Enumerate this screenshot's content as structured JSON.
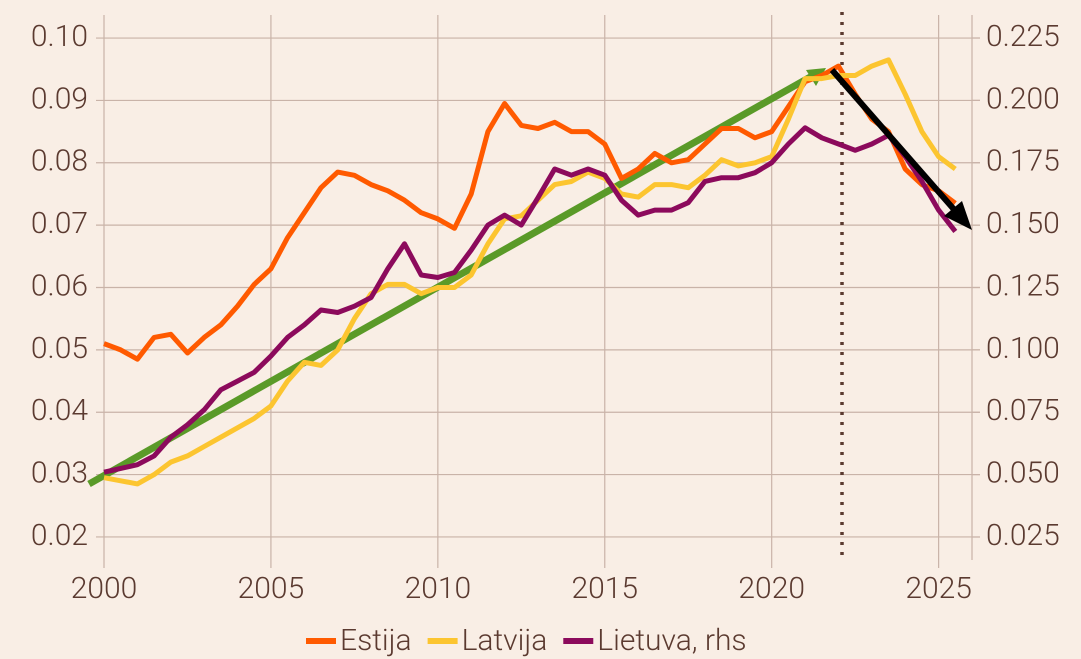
{
  "chart_data": {
    "type": "line",
    "x": [
      2000,
      2000.5,
      2001,
      2001.5,
      2002,
      2002.5,
      2003,
      2003.5,
      2004,
      2004.5,
      2005,
      2005.5,
      2006,
      2006.5,
      2007,
      2007.5,
      2008,
      2008.5,
      2009,
      2009.5,
      2010,
      2010.5,
      2011,
      2011.5,
      2012,
      2012.5,
      2013,
      2013.5,
      2014,
      2014.5,
      2015,
      2015.5,
      2016,
      2016.5,
      2017,
      2017.5,
      2018,
      2018.5,
      2019,
      2019.5,
      2020,
      2020.5,
      2021,
      2021.5,
      2022,
      2022.5,
      2023,
      2023.5,
      2024,
      2024.5,
      2025,
      2025.5
    ],
    "series": [
      {
        "name": "Estija",
        "color": "#ff5a00",
        "values": [
          0.051,
          0.05,
          0.0485,
          0.052,
          0.0525,
          0.0495,
          0.052,
          0.054,
          0.057,
          0.0605,
          0.063,
          0.068,
          0.072,
          0.076,
          0.0785,
          0.078,
          0.0765,
          0.0755,
          0.074,
          0.072,
          0.071,
          0.0695,
          0.075,
          0.085,
          0.0895,
          0.086,
          0.0855,
          0.0865,
          0.085,
          0.085,
          0.083,
          0.0775,
          0.079,
          0.0815,
          0.08,
          0.0805,
          0.083,
          0.0855,
          0.0855,
          0.084,
          0.085,
          0.089,
          0.093,
          0.094,
          0.0955,
          0.091,
          0.087,
          0.085,
          0.079,
          0.0765,
          0.0755,
          0.0735
        ]
      },
      {
        "name": "Latvija",
        "color": "#fcc530",
        "values": [
          0.0295,
          0.029,
          0.0285,
          0.03,
          0.032,
          0.033,
          0.0345,
          0.036,
          0.0375,
          0.039,
          0.041,
          0.045,
          0.048,
          0.0475,
          0.05,
          0.055,
          0.059,
          0.0605,
          0.0605,
          0.059,
          0.06,
          0.06,
          0.062,
          0.067,
          0.071,
          0.0715,
          0.074,
          0.0765,
          0.077,
          0.0785,
          0.0775,
          0.075,
          0.0745,
          0.0765,
          0.0765,
          0.076,
          0.078,
          0.0805,
          0.0795,
          0.08,
          0.081,
          0.087,
          0.0935,
          0.0935,
          0.094,
          0.094,
          0.0955,
          0.0965,
          0.091,
          0.085,
          0.081,
          0.079
        ]
      },
      {
        "name": "Lietuva, rhs",
        "color": "#8c0a5c",
        "axis": "y2",
        "values": [
          0.051,
          0.0525,
          0.054,
          0.0575,
          0.065,
          0.07,
          0.076,
          0.084,
          0.0875,
          0.091,
          0.0975,
          0.105,
          0.11,
          0.116,
          0.115,
          0.1175,
          0.121,
          0.1325,
          0.1425,
          0.13,
          0.129,
          0.131,
          0.14,
          0.15,
          0.154,
          0.15,
          0.161,
          0.1725,
          0.17,
          0.1725,
          0.17,
          0.16,
          0.154,
          0.156,
          0.156,
          0.159,
          0.1675,
          0.169,
          0.169,
          0.171,
          0.175,
          0.1825,
          0.189,
          0.185,
          0.1825,
          0.18,
          0.1825,
          0.186,
          0.1775,
          0.1675,
          0.156,
          0.1475
        ]
      }
    ],
    "xlim": [
      2000,
      2026
    ],
    "xticks": [
      2000,
      2005,
      2010,
      2015,
      2020,
      2025
    ],
    "ylim": [
      0.0163,
      0.1037
    ],
    "yticks": [
      0.02,
      0.03,
      0.04,
      0.05,
      0.06,
      0.07,
      0.08,
      0.09,
      {
        "value": 0.1,
        "label": "0.10"
      }
    ],
    "y2lim": [
      0.0158,
      0.2342
    ],
    "y2ticks": [
      0.025,
      {
        "value": 0.05,
        "label": "0.050"
      },
      0.075,
      {
        "value": 0.1,
        "label": "0.100"
      },
      0.125,
      {
        "value": 0.15,
        "label": "0.150"
      },
      0.175,
      {
        "value": 0.2,
        "label": "0.200"
      },
      0.225
    ],
    "grid": true,
    "legend": "bottom"
  }
}
